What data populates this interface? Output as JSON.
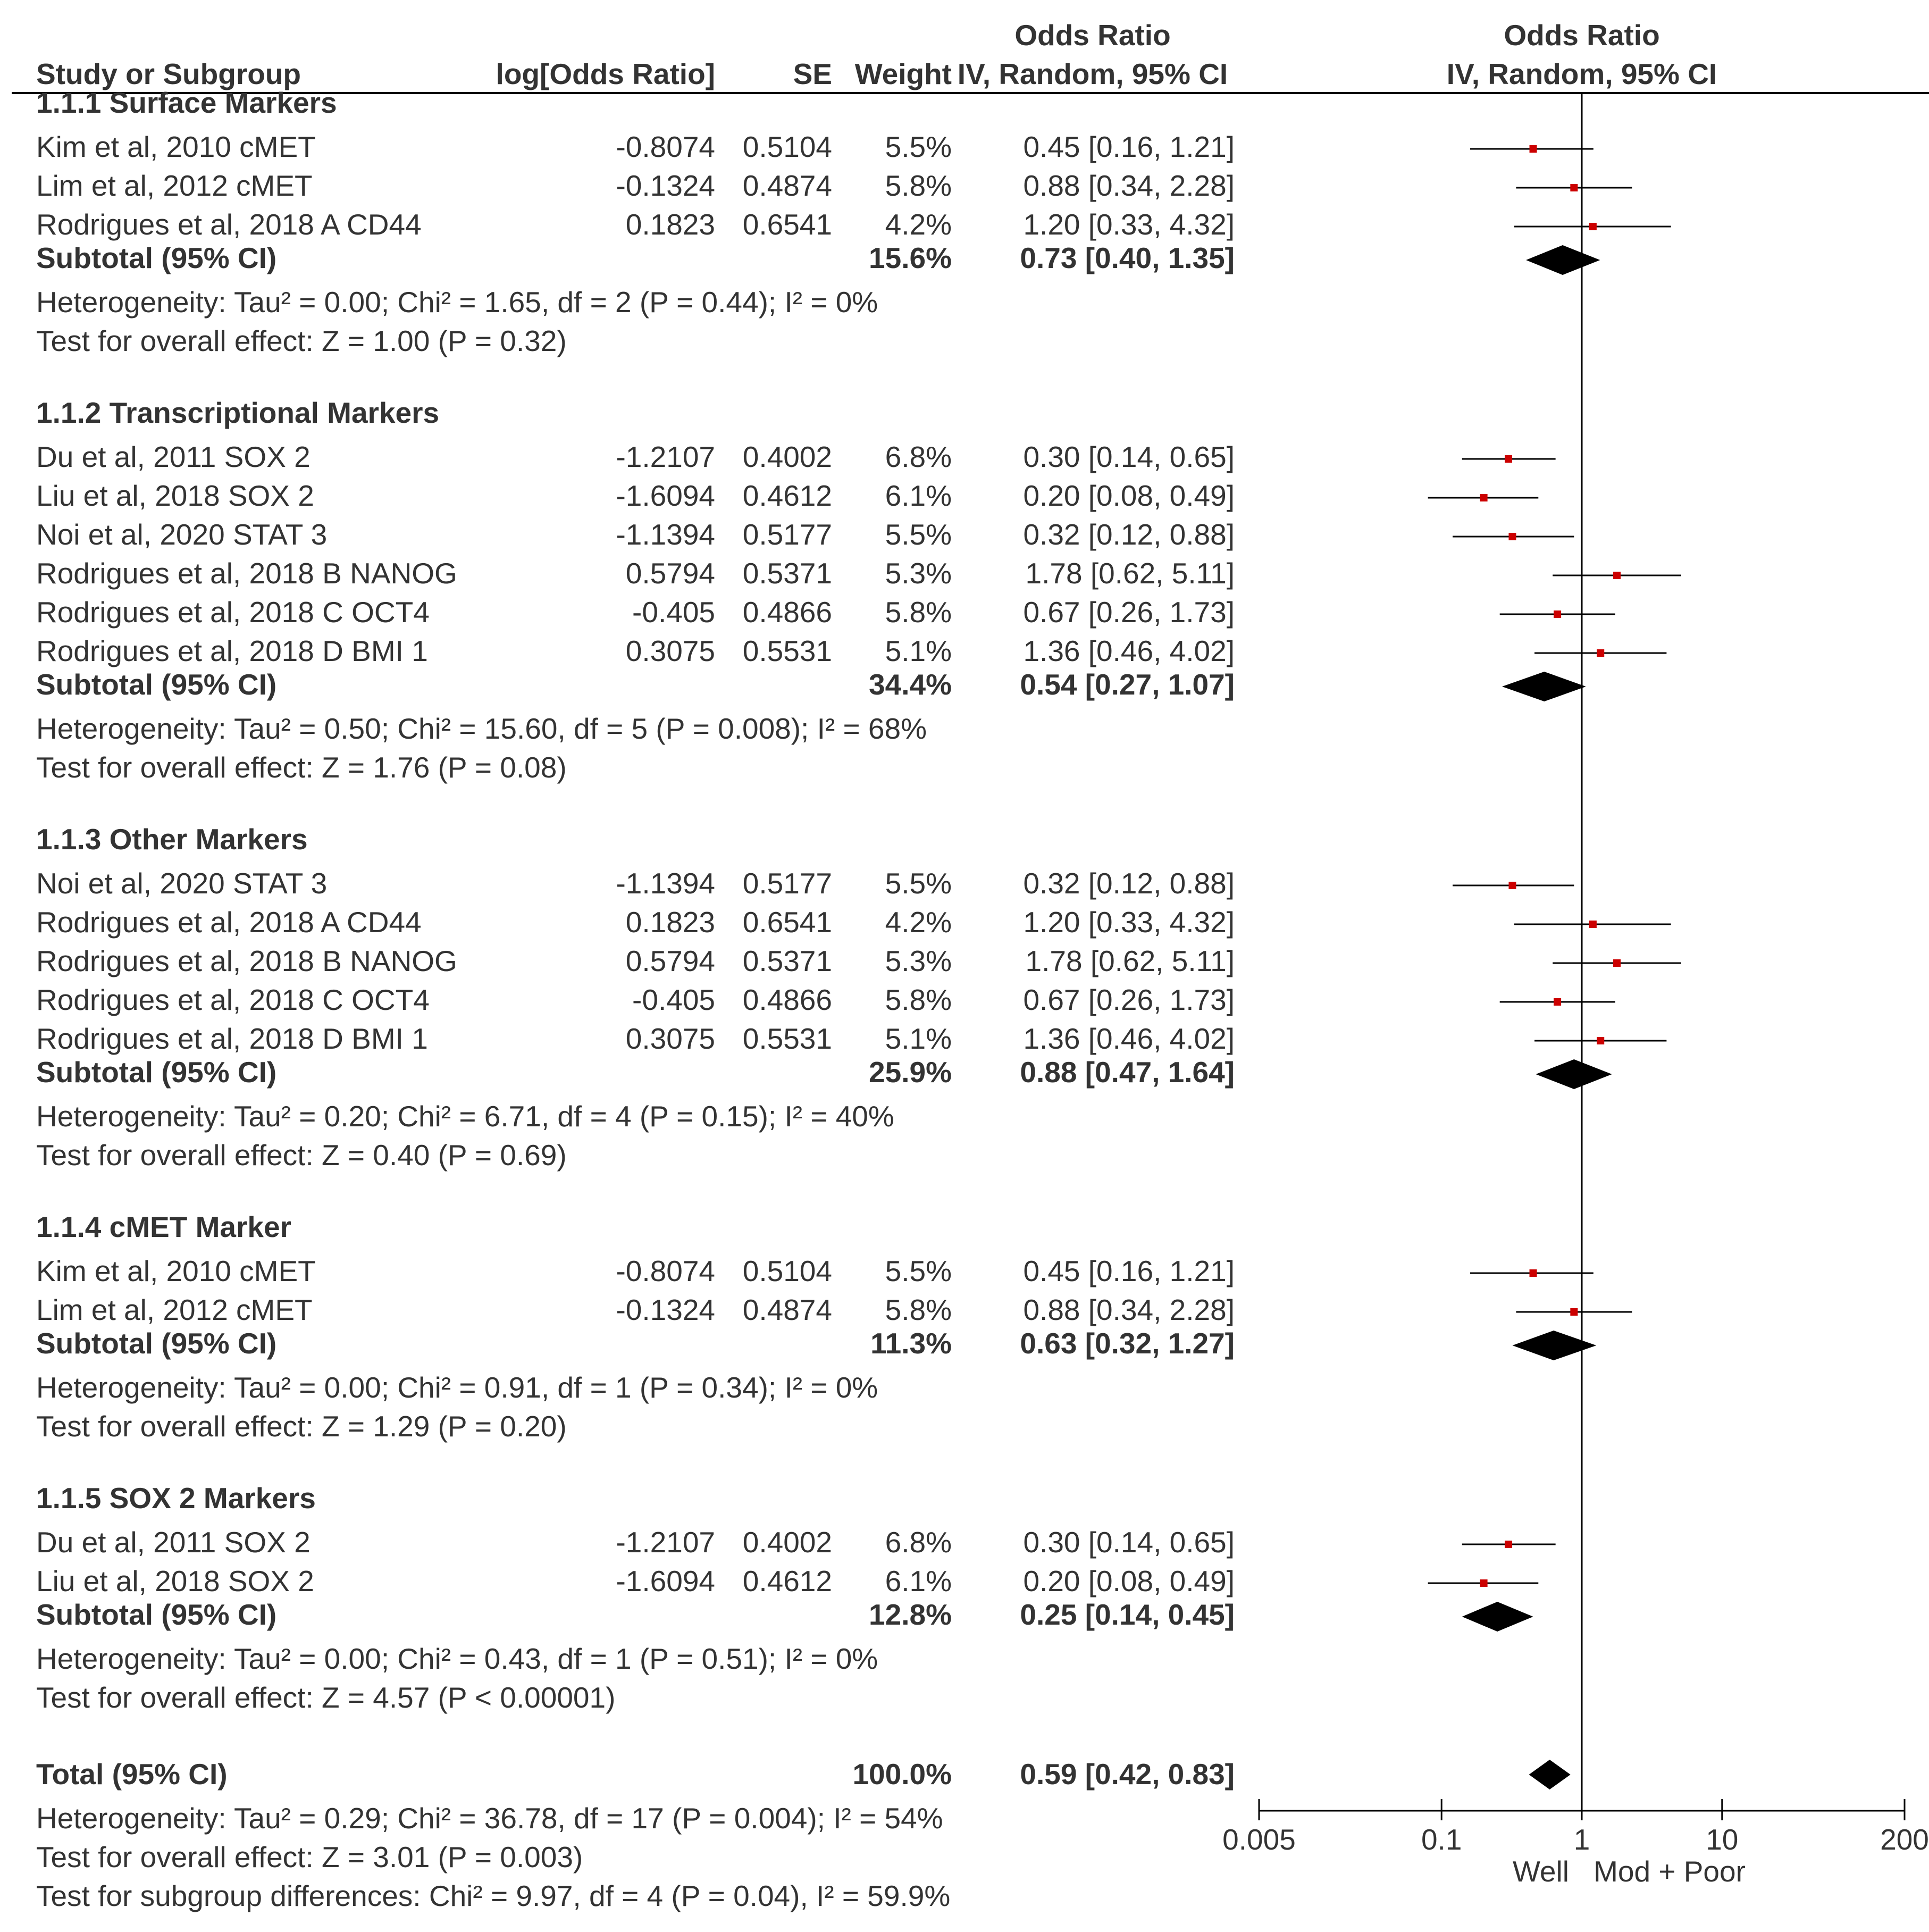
{
  "chart_data": {
    "type": "forest",
    "headers": {
      "study": "Study or Subgroup",
      "logor": "log[Odds Ratio]",
      "se": "SE",
      "weight": "Weight",
      "or_title": "Odds Ratio",
      "or_method": "IV, Random, 95% CI",
      "plot_title": "Odds Ratio",
      "plot_method": "IV, Random, 95% CI"
    },
    "axis": {
      "ticks": [
        0.005,
        0.1,
        1,
        10,
        200
      ],
      "tick_labels": [
        "0.005",
        "0.1",
        "1",
        "10",
        "200"
      ],
      "left_label": "Well",
      "right_label": "Mod + Poor",
      "scale": "log"
    },
    "groups": [
      {
        "title": "1.1.1 Surface Markers",
        "studies": [
          {
            "name": "Kim et al, 2010 cMET",
            "logor": "-0.8074",
            "se": "0.5104",
            "weight": "5.5%",
            "ci_text": "0.45 [0.16, 1.21]",
            "or": 0.45,
            "lo": 0.16,
            "hi": 1.21
          },
          {
            "name": "Lim et al, 2012 cMET",
            "logor": "-0.1324",
            "se": "0.4874",
            "weight": "5.8%",
            "ci_text": "0.88 [0.34, 2.28]",
            "or": 0.88,
            "lo": 0.34,
            "hi": 2.28
          },
          {
            "name": "Rodrigues et al, 2018 A  CD44",
            "logor": "0.1823",
            "se": "0.6541",
            "weight": "4.2%",
            "ci_text": "1.20 [0.33, 4.32]",
            "or": 1.2,
            "lo": 0.33,
            "hi": 4.32
          }
        ],
        "subtotal": {
          "label": "Subtotal (95% CI)",
          "weight": "15.6%",
          "ci_text": "0.73 [0.40, 1.35]",
          "or": 0.73,
          "lo": 0.4,
          "hi": 1.35
        },
        "heterogeneity": "Heterogeneity: Tau² = 0.00; Chi² = 1.65, df = 2 (P = 0.44); I² = 0%",
        "overall": "Test for overall effect: Z = 1.00 (P = 0.32)"
      },
      {
        "title": "1.1.2 Transcriptional Markers",
        "studies": [
          {
            "name": "Du et al, 2011 SOX 2",
            "logor": "-1.2107",
            "se": "0.4002",
            "weight": "6.8%",
            "ci_text": "0.30 [0.14, 0.65]",
            "or": 0.3,
            "lo": 0.14,
            "hi": 0.65
          },
          {
            "name": "Liu et al, 2018 SOX 2",
            "logor": "-1.6094",
            "se": "0.4612",
            "weight": "6.1%",
            "ci_text": "0.20 [0.08, 0.49]",
            "or": 0.2,
            "lo": 0.08,
            "hi": 0.49
          },
          {
            "name": "Noi et al, 2020 STAT 3",
            "logor": "-1.1394",
            "se": "0.5177",
            "weight": "5.5%",
            "ci_text": "0.32 [0.12, 0.88]",
            "or": 0.32,
            "lo": 0.12,
            "hi": 0.88
          },
          {
            "name": "Rodrigues et al, 2018 B NANOG",
            "logor": "0.5794",
            "se": "0.5371",
            "weight": "5.3%",
            "ci_text": "1.78 [0.62, 5.11]",
            "or": 1.78,
            "lo": 0.62,
            "hi": 5.11
          },
          {
            "name": "Rodrigues et al, 2018 C OCT4",
            "logor": "-0.405",
            "se": "0.4866",
            "weight": "5.8%",
            "ci_text": "0.67 [0.26, 1.73]",
            "or": 0.67,
            "lo": 0.26,
            "hi": 1.73
          },
          {
            "name": "Rodrigues et al, 2018 D BMI 1",
            "logor": "0.3075",
            "se": "0.5531",
            "weight": "5.1%",
            "ci_text": "1.36 [0.46, 4.02]",
            "or": 1.36,
            "lo": 0.46,
            "hi": 4.02
          }
        ],
        "subtotal": {
          "label": "Subtotal (95% CI)",
          "weight": "34.4%",
          "ci_text": "0.54 [0.27, 1.07]",
          "or": 0.54,
          "lo": 0.27,
          "hi": 1.07
        },
        "heterogeneity": "Heterogeneity: Tau² = 0.50; Chi² = 15.60, df = 5 (P = 0.008); I² = 68%",
        "overall": "Test for overall effect: Z = 1.76 (P = 0.08)"
      },
      {
        "title": "1.1.3 Other Markers",
        "studies": [
          {
            "name": "Noi et al, 2020 STAT 3",
            "logor": "-1.1394",
            "se": "0.5177",
            "weight": "5.5%",
            "ci_text": "0.32 [0.12, 0.88]",
            "or": 0.32,
            "lo": 0.12,
            "hi": 0.88
          },
          {
            "name": "Rodrigues et al, 2018 A  CD44",
            "logor": "0.1823",
            "se": "0.6541",
            "weight": "4.2%",
            "ci_text": "1.20 [0.33, 4.32]",
            "or": 1.2,
            "lo": 0.33,
            "hi": 4.32
          },
          {
            "name": "Rodrigues et al, 2018 B NANOG",
            "logor": "0.5794",
            "se": "0.5371",
            "weight": "5.3%",
            "ci_text": "1.78 [0.62, 5.11]",
            "or": 1.78,
            "lo": 0.62,
            "hi": 5.11
          },
          {
            "name": "Rodrigues et al, 2018 C OCT4",
            "logor": "-0.405",
            "se": "0.4866",
            "weight": "5.8%",
            "ci_text": "0.67 [0.26, 1.73]",
            "or": 0.67,
            "lo": 0.26,
            "hi": 1.73
          },
          {
            "name": "Rodrigues et al, 2018 D BMI 1",
            "logor": "0.3075",
            "se": "0.5531",
            "weight": "5.1%",
            "ci_text": "1.36 [0.46, 4.02]",
            "or": 1.36,
            "lo": 0.46,
            "hi": 4.02
          }
        ],
        "subtotal": {
          "label": "Subtotal (95% CI)",
          "weight": "25.9%",
          "ci_text": "0.88 [0.47, 1.64]",
          "or": 0.88,
          "lo": 0.47,
          "hi": 1.64
        },
        "heterogeneity": "Heterogeneity: Tau² = 0.20; Chi² = 6.71, df = 4 (P = 0.15); I² = 40%",
        "overall": "Test for overall effect: Z = 0.40 (P = 0.69)"
      },
      {
        "title": "1.1.4 cMET Marker",
        "studies": [
          {
            "name": "Kim et al, 2010 cMET",
            "logor": "-0.8074",
            "se": "0.5104",
            "weight": "5.5%",
            "ci_text": "0.45 [0.16, 1.21]",
            "or": 0.45,
            "lo": 0.16,
            "hi": 1.21
          },
          {
            "name": "Lim et al, 2012 cMET",
            "logor": "-0.1324",
            "se": "0.4874",
            "weight": "5.8%",
            "ci_text": "0.88 [0.34, 2.28]",
            "or": 0.88,
            "lo": 0.34,
            "hi": 2.28
          }
        ],
        "subtotal": {
          "label": "Subtotal (95% CI)",
          "weight": "11.3%",
          "ci_text": "0.63 [0.32, 1.27]",
          "or": 0.63,
          "lo": 0.32,
          "hi": 1.27
        },
        "heterogeneity": "Heterogeneity: Tau² = 0.00; Chi² = 0.91, df = 1 (P = 0.34); I² = 0%",
        "overall": "Test for overall effect: Z = 1.29 (P = 0.20)"
      },
      {
        "title": "1.1.5 SOX 2 Markers",
        "studies": [
          {
            "name": "Du et al, 2011 SOX 2",
            "logor": "-1.2107",
            "se": "0.4002",
            "weight": "6.8%",
            "ci_text": "0.30 [0.14, 0.65]",
            "or": 0.3,
            "lo": 0.14,
            "hi": 0.65
          },
          {
            "name": "Liu et al, 2018 SOX 2",
            "logor": "-1.6094",
            "se": "0.4612",
            "weight": "6.1%",
            "ci_text": "0.20 [0.08, 0.49]",
            "or": 0.2,
            "lo": 0.08,
            "hi": 0.49
          }
        ],
        "subtotal": {
          "label": "Subtotal (95% CI)",
          "weight": "12.8%",
          "ci_text": "0.25 [0.14, 0.45]",
          "or": 0.25,
          "lo": 0.14,
          "hi": 0.45
        },
        "heterogeneity": "Heterogeneity: Tau² = 0.00; Chi² = 0.43, df = 1 (P = 0.51); I² = 0%",
        "overall": "Test for overall effect: Z = 4.57 (P < 0.00001)"
      }
    ],
    "total": {
      "label": "Total (95% CI)",
      "weight": "100.0%",
      "ci_text": "0.59 [0.42, 0.83]",
      "or": 0.59,
      "lo": 0.42,
      "hi": 0.83,
      "heterogeneity": "Heterogeneity: Tau² = 0.29; Chi² = 36.78, df = 17 (P = 0.004); I² = 54%",
      "overall": "Test for overall effect: Z = 3.01 (P = 0.003)",
      "subgroup": "Test for subgroup differences: Chi² = 9.97, df = 4 (P = 0.04), I² = 59.9%"
    },
    "colors": {
      "text": "#333333",
      "point": "#cc0000",
      "line": "#000000",
      "diamond": "#000000"
    }
  }
}
